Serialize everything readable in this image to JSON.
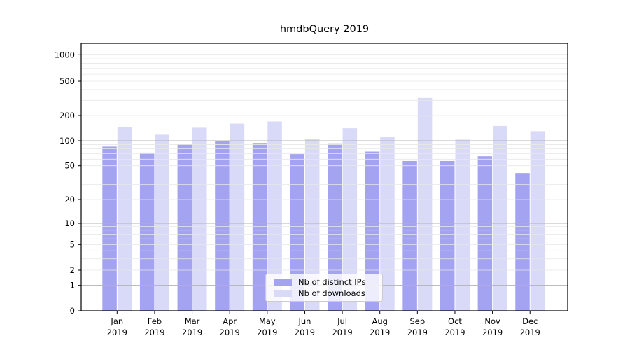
{
  "title": "hmdbQuery 2019",
  "legend": {
    "items": [
      {
        "label": "Nb of distinct IPs",
        "color": "#a3a3f1"
      },
      {
        "label": "Nb of downloads",
        "color": "#d9d9f8"
      }
    ]
  },
  "y_axis": {
    "tick_labels": [
      "1000",
      "500",
      "200",
      "100",
      "50",
      "20",
      "10",
      "5",
      "2",
      "1",
      "0"
    ]
  },
  "x_axis": {
    "year_line": "2019",
    "months": [
      "Jan",
      "Feb",
      "Mar",
      "Apr",
      "May",
      "Jun",
      "Jul",
      "Aug",
      "Sep",
      "Oct",
      "Nov",
      "Dec"
    ]
  },
  "chart_data": {
    "type": "bar",
    "title": "hmdbQuery 2019",
    "xlabel": "",
    "ylabel": "",
    "scale": "symlog",
    "grid": "both",
    "legend_position": "lower center",
    "categories": [
      "Jan 2019",
      "Feb 2019",
      "Mar 2019",
      "Apr 2019",
      "May 2019",
      "Jun 2019",
      "Jul 2019",
      "Aug 2019",
      "Sep 2019",
      "Oct 2019",
      "Nov 2019",
      "Dec 2019"
    ],
    "yticks": [
      0,
      1,
      2,
      5,
      10,
      20,
      50,
      100,
      200,
      500,
      1000
    ],
    "ylim": [
      0,
      1350
    ],
    "series": [
      {
        "name": "Nb of distinct IPs",
        "color": "#a3a3f1",
        "values": [
          85,
          72,
          91,
          100,
          94,
          69,
          93,
          74,
          57,
          57,
          65,
          41
        ]
      },
      {
        "name": "Nb of downloads",
        "color": "#d9d9f8",
        "values": [
          145,
          118,
          143,
          160,
          170,
          104,
          141,
          112,
          320,
          103,
          150,
          130
        ]
      }
    ]
  },
  "colors": {
    "major_grid": "#b3b3b3",
    "minor_grid": "#e7e7e7",
    "spine": "#000000",
    "text": "#000000"
  }
}
